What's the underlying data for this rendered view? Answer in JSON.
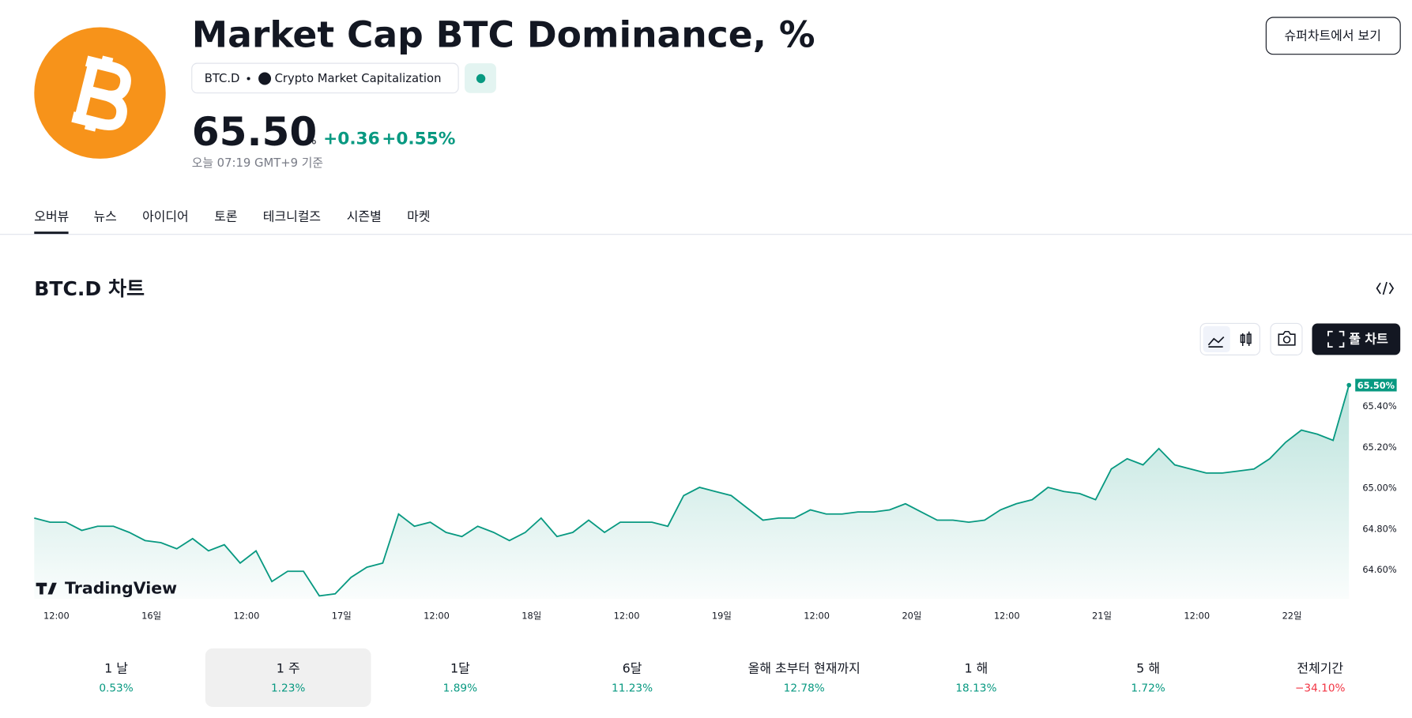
{
  "header": {
    "title": "Market Cap BTC Dominance, %",
    "symbol": "BTC.D",
    "exchange": "Crypto Market Capitalization",
    "price": "65.50",
    "unit": "%",
    "change": "+0.36",
    "change_pct": "+0.55%",
    "time": "오늘 07:19 GMT+9 기준",
    "button": "슈퍼차트에서 보기"
  },
  "tabs": [
    "오버뷰",
    "뉴스",
    "아이디어",
    "토론",
    "테크니컬즈",
    "시즌별",
    "마켓"
  ],
  "section": {
    "title": "BTC.D 차트",
    "full_chart": "풀 차트",
    "watermark": "TradingView"
  },
  "chart_data": {
    "type": "area",
    "color": "#089981",
    "series": [
      {
        "color": "#089981",
        "values": [
          64.85,
          64.83,
          64.83,
          64.79,
          64.81,
          64.81,
          64.78,
          64.74,
          64.73,
          64.7,
          64.75,
          64.69,
          64.72,
          64.63,
          64.69,
          64.54,
          64.59,
          64.59,
          64.47,
          64.48,
          64.56,
          64.61,
          64.63,
          64.87,
          64.81,
          64.83,
          64.78,
          64.76,
          64.81,
          64.78,
          64.74,
          64.78,
          64.85,
          64.76,
          64.78,
          64.84,
          64.78,
          64.83,
          64.83,
          64.83,
          64.81,
          64.96,
          65.0,
          64.98,
          64.96,
          64.9,
          64.84,
          64.85,
          64.85,
          64.89,
          64.87,
          64.87,
          64.88,
          64.88,
          64.89,
          64.92,
          64.88,
          64.84,
          64.84,
          64.83,
          64.84,
          64.89,
          64.92,
          64.94,
          65.0,
          64.98,
          64.97,
          64.94,
          65.09,
          65.14,
          65.11,
          65.19,
          65.11,
          65.09,
          65.07,
          65.07,
          65.08,
          65.09,
          65.14,
          65.22,
          65.28,
          65.26,
          65.23,
          65.5
        ]
      }
    ],
    "last_label": "65.50%",
    "xlim": [
      0,
      83
    ],
    "xticks": [
      {
        "value": 1.4,
        "label": "12:00"
      },
      {
        "value": 7.4,
        "label": "16일"
      },
      {
        "value": 13.4,
        "label": "12:00"
      },
      {
        "value": 19.4,
        "label": "17일"
      },
      {
        "value": 25.4,
        "label": "12:00"
      },
      {
        "value": 31.4,
        "label": "18일"
      },
      {
        "value": 37.4,
        "label": "12:00"
      },
      {
        "value": 43.4,
        "label": "19일"
      },
      {
        "value": 49.4,
        "label": "12:00"
      },
      {
        "value": 55.4,
        "label": "20일"
      },
      {
        "value": 61.4,
        "label": "12:00"
      },
      {
        "value": 67.4,
        "label": "21일"
      },
      {
        "value": 73.4,
        "label": "12:00"
      },
      {
        "value": 79.4,
        "label": "22일"
      }
    ],
    "ylim": [
      64.455,
      65.555
    ],
    "yticks": [
      {
        "value": 64.6,
        "label": "64.60%"
      },
      {
        "value": 64.8,
        "label": "64.80%"
      },
      {
        "value": 65.0,
        "label": "65.00%"
      },
      {
        "value": 65.2,
        "label": "65.20%"
      },
      {
        "value": 65.4,
        "label": "65.40%"
      }
    ]
  },
  "periods": [
    {
      "label": "1 날",
      "value": "0.53%"
    },
    {
      "label": "1 주",
      "value": "1.23%"
    },
    {
      "label": "1달",
      "value": "1.89%"
    },
    {
      "label": "6달",
      "value": "11.23%"
    },
    {
      "label": "올해 초부터 현재까지",
      "value": "12.78%"
    },
    {
      "label": "1 해",
      "value": "18.13%"
    },
    {
      "label": "5 해",
      "value": "1.72%"
    },
    {
      "label": "전체기간",
      "value": "−34.10%"
    }
  ],
  "selected_period": 1
}
